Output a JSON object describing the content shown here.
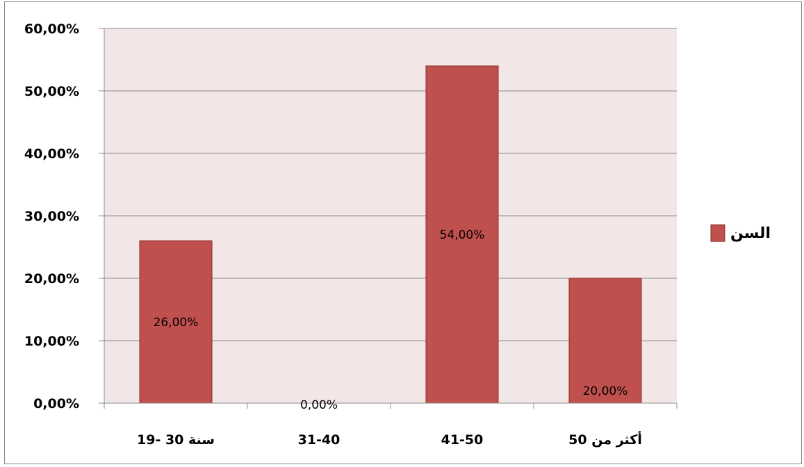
{
  "chart_data": {
    "type": "bar",
    "categories": [
      "19- 30 سنة",
      "31-40",
      "41-50",
      "أكثر من 50"
    ],
    "series": [
      {
        "name": "السن",
        "values": [
          26,
          0,
          54,
          20
        ],
        "color": "#c0504d"
      }
    ],
    "data_labels": [
      "26,00%",
      "0,00%",
      "54,00%",
      "20,00%"
    ],
    "ylim": [
      0,
      60
    ],
    "yticks": [
      0,
      10,
      20,
      30,
      40,
      50,
      60
    ],
    "ytick_labels": [
      "0,00%",
      "10,00%",
      "20,00%",
      "30,00%",
      "40,00%",
      "50,00%",
      "60,00%"
    ],
    "title": "",
    "xlabel": "",
    "ylabel": "",
    "grid": true,
    "legend_position": "right",
    "plot_background": "#f2e6e6",
    "bar_border_color": "#8b2a27"
  }
}
